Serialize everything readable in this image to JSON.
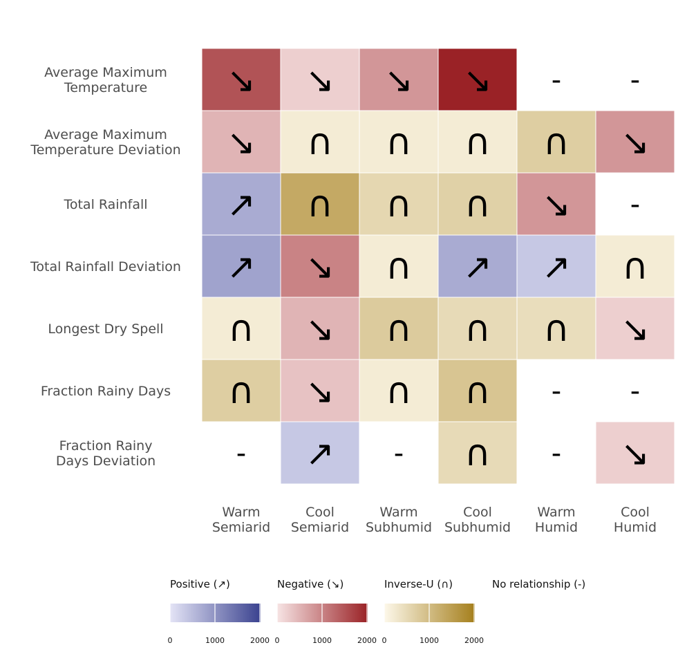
{
  "chart_data": {
    "type": "heatmap",
    "rows": [
      "Average Maximum\nTemperature",
      "Average Maximum\nTemperature Deviation",
      "Total Rainfall",
      "Total Rainfall Deviation",
      "Longest Dry Spell",
      "Fraction Rainy Days",
      "Fraction Rainy\nDays Deviation"
    ],
    "columns": [
      "Warm\nSemiarid",
      "Cool\nSemiarid",
      "Warm\nSubhumid",
      "Cool\nSubhumid",
      "Warm\nHumid",
      "Cool\nHumid"
    ],
    "symbols": {
      "positive": "↗",
      "negative": "↘",
      "inverse_u": "∩",
      "none": "-"
    },
    "cells": [
      [
        {
          "rel": "negative",
          "value": 1500
        },
        {
          "rel": "negative",
          "value": 220
        },
        {
          "rel": "negative",
          "value": 800
        },
        {
          "rel": "negative",
          "value": 2000
        },
        {
          "rel": "none",
          "value": null
        },
        {
          "rel": "none",
          "value": null
        }
      ],
      [
        {
          "rel": "negative",
          "value": 500
        },
        {
          "rel": "inverse_u",
          "value": 200
        },
        {
          "rel": "inverse_u",
          "value": 200
        },
        {
          "rel": "inverse_u",
          "value": 200
        },
        {
          "rel": "inverse_u",
          "value": 700
        },
        {
          "rel": "negative",
          "value": 800
        }
      ],
      [
        {
          "rel": "positive",
          "value": 700
        },
        {
          "rel": "inverse_u",
          "value": 1300
        },
        {
          "rel": "inverse_u",
          "value": 550
        },
        {
          "rel": "inverse_u",
          "value": 650
        },
        {
          "rel": "negative",
          "value": 800
        },
        {
          "rel": "none",
          "value": null
        }
      ],
      [
        {
          "rel": "positive",
          "value": 800
        },
        {
          "rel": "negative",
          "value": 1000
        },
        {
          "rel": "inverse_u",
          "value": 200
        },
        {
          "rel": "positive",
          "value": 700
        },
        {
          "rel": "positive",
          "value": 350
        },
        {
          "rel": "inverse_u",
          "value": 200
        }
      ],
      [
        {
          "rel": "inverse_u",
          "value": 200
        },
        {
          "rel": "negative",
          "value": 500
        },
        {
          "rel": "inverse_u",
          "value": 750
        },
        {
          "rel": "inverse_u",
          "value": 500
        },
        {
          "rel": "inverse_u",
          "value": 450
        },
        {
          "rel": "negative",
          "value": 220
        }
      ],
      [
        {
          "rel": "inverse_u",
          "value": 700
        },
        {
          "rel": "negative",
          "value": 350
        },
        {
          "rel": "inverse_u",
          "value": 200
        },
        {
          "rel": "inverse_u",
          "value": 850
        },
        {
          "rel": "none",
          "value": null
        },
        {
          "rel": "none",
          "value": null
        }
      ],
      [
        {
          "rel": "none",
          "value": null
        },
        {
          "rel": "positive",
          "value": 350
        },
        {
          "rel": "none",
          "value": null
        },
        {
          "rel": "inverse_u",
          "value": 500
        },
        {
          "rel": "none",
          "value": null
        },
        {
          "rel": "negative",
          "value": 220
        }
      ]
    ],
    "legend": [
      {
        "key": "positive",
        "title": "Positive (↗)",
        "low": "#e4e4f6",
        "high": "#3a428f"
      },
      {
        "key": "negative",
        "title": "Negative (↘)",
        "low": "#f7e4e4",
        "high": "#9a2226"
      },
      {
        "key": "inverse_u",
        "title": "Inverse-U (∩)",
        "low": "#fdf8ea",
        "high": "#a57f1c"
      },
      {
        "key": "none",
        "title": "No relationship (-)"
      }
    ],
    "scale_min": 0,
    "scale_max": 2000,
    "ticks": [
      "0",
      "1000",
      "2000"
    ]
  }
}
